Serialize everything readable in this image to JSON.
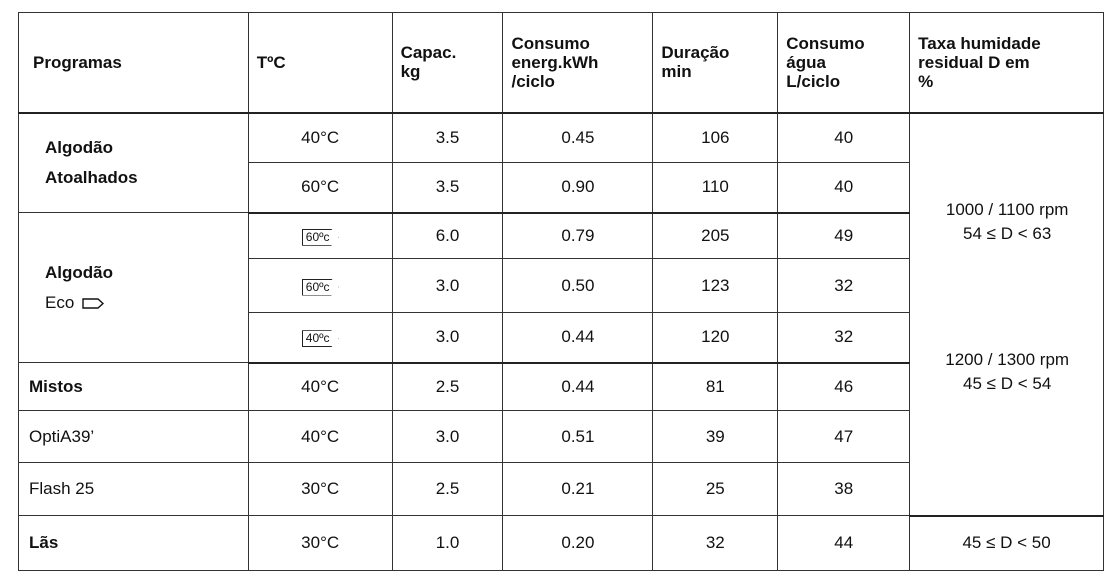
{
  "table": {
    "header": [
      [
        "Programas"
      ],
      [
        "TºC"
      ],
      [
        "Capac.",
        "kg"
      ],
      [
        "Consumo",
        "energ.kWh",
        "/ciclo"
      ],
      [
        "Duração",
        "min"
      ],
      [
        "Consumo",
        "água",
        "L/ciclo"
      ],
      [
        "Taxa humidade",
        "residual D em",
        "%"
      ]
    ],
    "programs": [
      {
        "name": [
          "Algodão",
          "Atoalhados"
        ],
        "bold": true,
        "rows": [
          [
            "40°C",
            "3.5",
            "0.45",
            "106",
            "40"
          ],
          [
            "60°C",
            "3.5",
            "0.90",
            "110",
            "40"
          ]
        ]
      },
      {
        "name": [
          "Algodão",
          "Eco"
        ],
        "bold": true,
        "eco_icon": true,
        "badge_temps": true,
        "rows": [
          [
            "60ºc",
            "6.0",
            "0.79",
            "205",
            "49"
          ],
          [
            "60ºc",
            "3.0",
            "0.50",
            "123",
            "32"
          ],
          [
            "40ºc",
            "3.0",
            "0.44",
            "120",
            "32"
          ]
        ]
      },
      {
        "name": [
          "Mistos"
        ],
        "bold": true,
        "rows": [
          [
            "40°C",
            "2.5",
            "0.44",
            "81",
            "46"
          ]
        ]
      },
      {
        "name": [
          "OptiA39’"
        ],
        "bold": false,
        "rows": [
          [
            "40°C",
            "3.0",
            "0.51",
            "39",
            "47"
          ]
        ]
      },
      {
        "name": [
          "Flash 25"
        ],
        "bold": false,
        "rows": [
          [
            "30°C",
            "2.5",
            "0.21",
            "25",
            "38"
          ]
        ]
      },
      {
        "name": [
          "Lãs"
        ],
        "bold": true,
        "rows": [
          [
            "30°C",
            "1.0",
            "0.20",
            "32",
            "44"
          ]
        ]
      }
    ],
    "humidity": [
      {
        "rpm": "1000 / 1100 rpm",
        "range": "54 ≤ D < 63"
      },
      {
        "rpm": "1200 / 1300 rpm",
        "range": "45 ≤ D < 54"
      },
      {
        "range": "45 ≤ D < 50"
      }
    ]
  }
}
